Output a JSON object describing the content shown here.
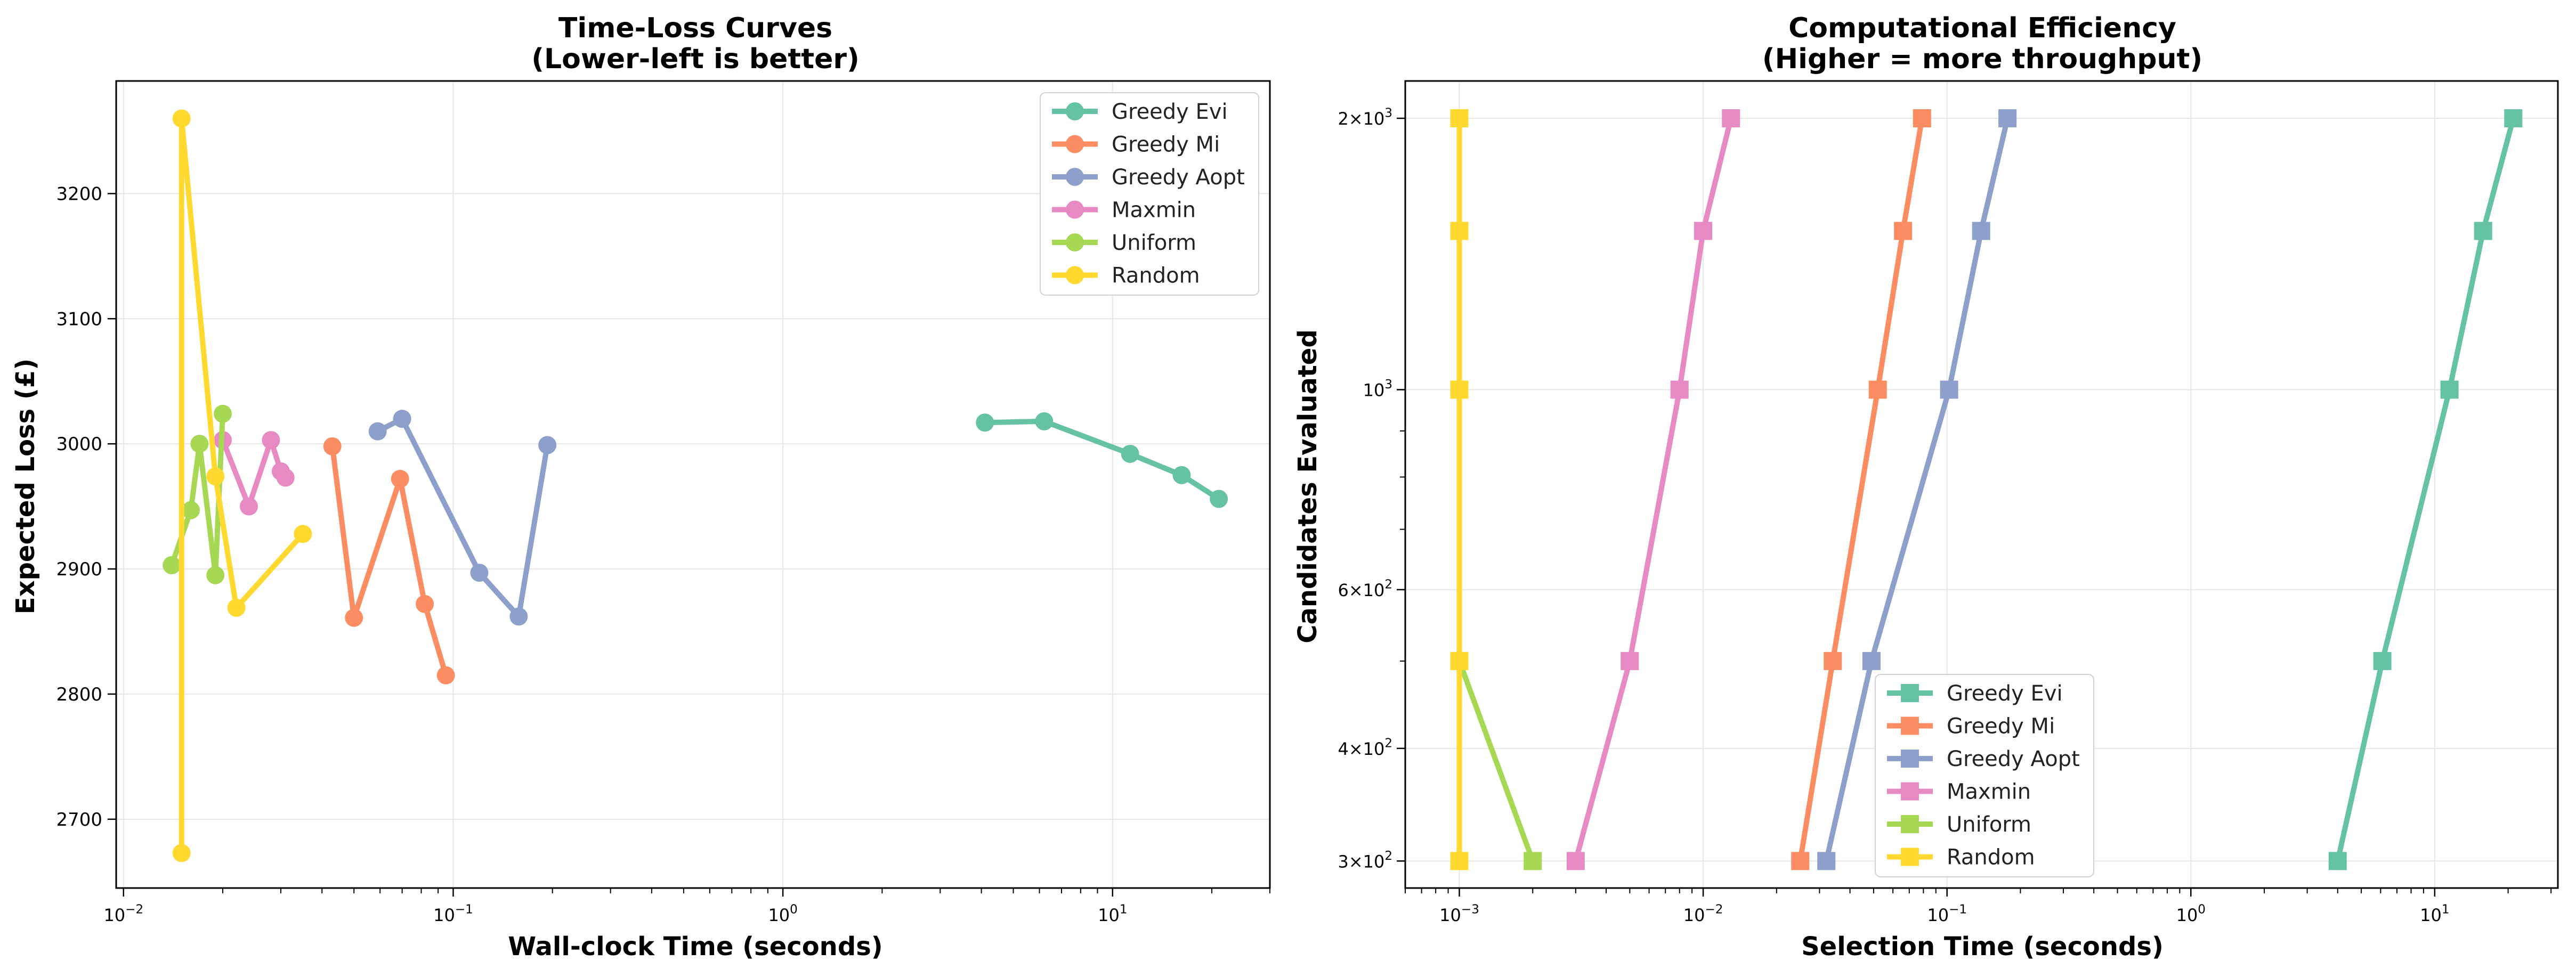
{
  "colors": {
    "Greedy Evi": "#66c2a5",
    "Greedy Mi": "#fc8d62",
    "Greedy Aopt": "#8da0cb",
    "Maxmin": "#e78ac3",
    "Uniform": "#a6d854",
    "Random": "#ffd92f"
  },
  "chart_data": [
    {
      "type": "line",
      "title": "Time-Loss Curves",
      "subtitle": "(Lower-left is better)",
      "xlabel": "Wall-clock Time (seconds)",
      "ylabel": "Expected Loss (£)",
      "xscale": "log",
      "xlim": [
        0.0095,
        30
      ],
      "ylim": [
        2645,
        3290
      ],
      "x_ticks": [
        {
          "value": 0.01,
          "base": "10",
          "exp": "−2"
        },
        {
          "value": 0.1,
          "base": "10",
          "exp": "−1"
        },
        {
          "value": 1,
          "base": "10",
          "exp": "0"
        },
        {
          "value": 10,
          "base": "10",
          "exp": "1"
        }
      ],
      "y_ticks": [
        "2700",
        "2800",
        "2900",
        "3000",
        "3100",
        "3200"
      ],
      "grid": true,
      "marker": "circle",
      "legend_position": "upper right",
      "series": [
        {
          "name": "Greedy Evi",
          "x": [
            4.1,
            6.2,
            11.3,
            16.2,
            21
          ],
          "y": [
            3017,
            3018,
            2992,
            2975,
            2956
          ]
        },
        {
          "name": "Greedy Mi",
          "x": [
            0.043,
            0.05,
            0.069,
            0.082,
            0.095
          ],
          "y": [
            2998,
            2861,
            2972,
            2872,
            2815
          ]
        },
        {
          "name": "Greedy Aopt",
          "x": [
            0.059,
            0.07,
            0.12,
            0.158,
            0.193
          ],
          "y": [
            3010,
            3020,
            2897,
            2862,
            2999
          ]
        },
        {
          "name": "Maxmin",
          "x": [
            0.02,
            0.024,
            0.028,
            0.03,
            0.031
          ],
          "y": [
            3003,
            2950,
            3003,
            2978,
            2973
          ]
        },
        {
          "name": "Uniform",
          "x": [
            0.014,
            0.016,
            0.017,
            0.019,
            0.02
          ],
          "y": [
            2903,
            2947,
            3000,
            2895,
            3024
          ]
        },
        {
          "name": "Random",
          "x": [
            0.015,
            0.015,
            0.019,
            0.022,
            0.035
          ],
          "y": [
            2673,
            3260,
            2974,
            2869,
            2928
          ]
        }
      ]
    },
    {
      "type": "line",
      "title": "Computational Efficiency",
      "subtitle": "(Higher = more throughput)",
      "xlabel": "Selection Time (seconds)",
      "ylabel": "Candidates Evaluated",
      "xscale": "log",
      "yscale": "log",
      "xlim": [
        0.0006,
        32
      ],
      "ylim": [
        280,
        2200
      ],
      "x_ticks": [
        {
          "value": 0.001,
          "base": "10",
          "exp": "−3"
        },
        {
          "value": 0.01,
          "base": "10",
          "exp": "−2"
        },
        {
          "value": 0.1,
          "base": "10",
          "exp": "−1"
        },
        {
          "value": 1,
          "base": "10",
          "exp": "0"
        },
        {
          "value": 10,
          "base": "10",
          "exp": "1"
        }
      ],
      "y_ticks": [
        {
          "value": 300,
          "mant": "3",
          "base": "10",
          "exp": "2"
        },
        {
          "value": 400,
          "mant": "4",
          "base": "10",
          "exp": "2"
        },
        {
          "value": 600,
          "mant": "6",
          "base": "10",
          "exp": "2"
        },
        {
          "value": 1000,
          "mant": "",
          "base": "10",
          "exp": "3"
        },
        {
          "value": 2000,
          "mant": "2",
          "base": "10",
          "exp": "3"
        }
      ],
      "grid": true,
      "marker": "square",
      "legend_position": "lower center",
      "series": [
        {
          "name": "Greedy Evi",
          "x": [
            4.0,
            6.1,
            11.5,
            15.8,
            21.0
          ],
          "y": [
            300,
            500,
            1000,
            1500,
            2000
          ]
        },
        {
          "name": "Greedy Mi",
          "x": [
            0.025,
            0.034,
            0.052,
            0.066,
            0.079
          ],
          "y": [
            300,
            500,
            1000,
            1500,
            2000
          ]
        },
        {
          "name": "Greedy Aopt",
          "x": [
            0.032,
            0.049,
            0.102,
            0.138,
            0.177
          ],
          "y": [
            300,
            500,
            1000,
            1500,
            2000
          ]
        },
        {
          "name": "Maxmin",
          "x": [
            0.003,
            0.005,
            0.008,
            0.01,
            0.013
          ],
          "y": [
            300,
            500,
            1000,
            1500,
            2000
          ]
        },
        {
          "name": "Uniform",
          "x": [
            0.002,
            0.001,
            0.001,
            0.001,
            0.001
          ],
          "y": [
            300,
            500,
            1000,
            1500,
            2000
          ]
        },
        {
          "name": "Random",
          "x": [
            0.001,
            0.001,
            0.001,
            0.001,
            0.001
          ],
          "y": [
            300,
            500,
            1000,
            1500,
            2000
          ]
        }
      ]
    }
  ]
}
